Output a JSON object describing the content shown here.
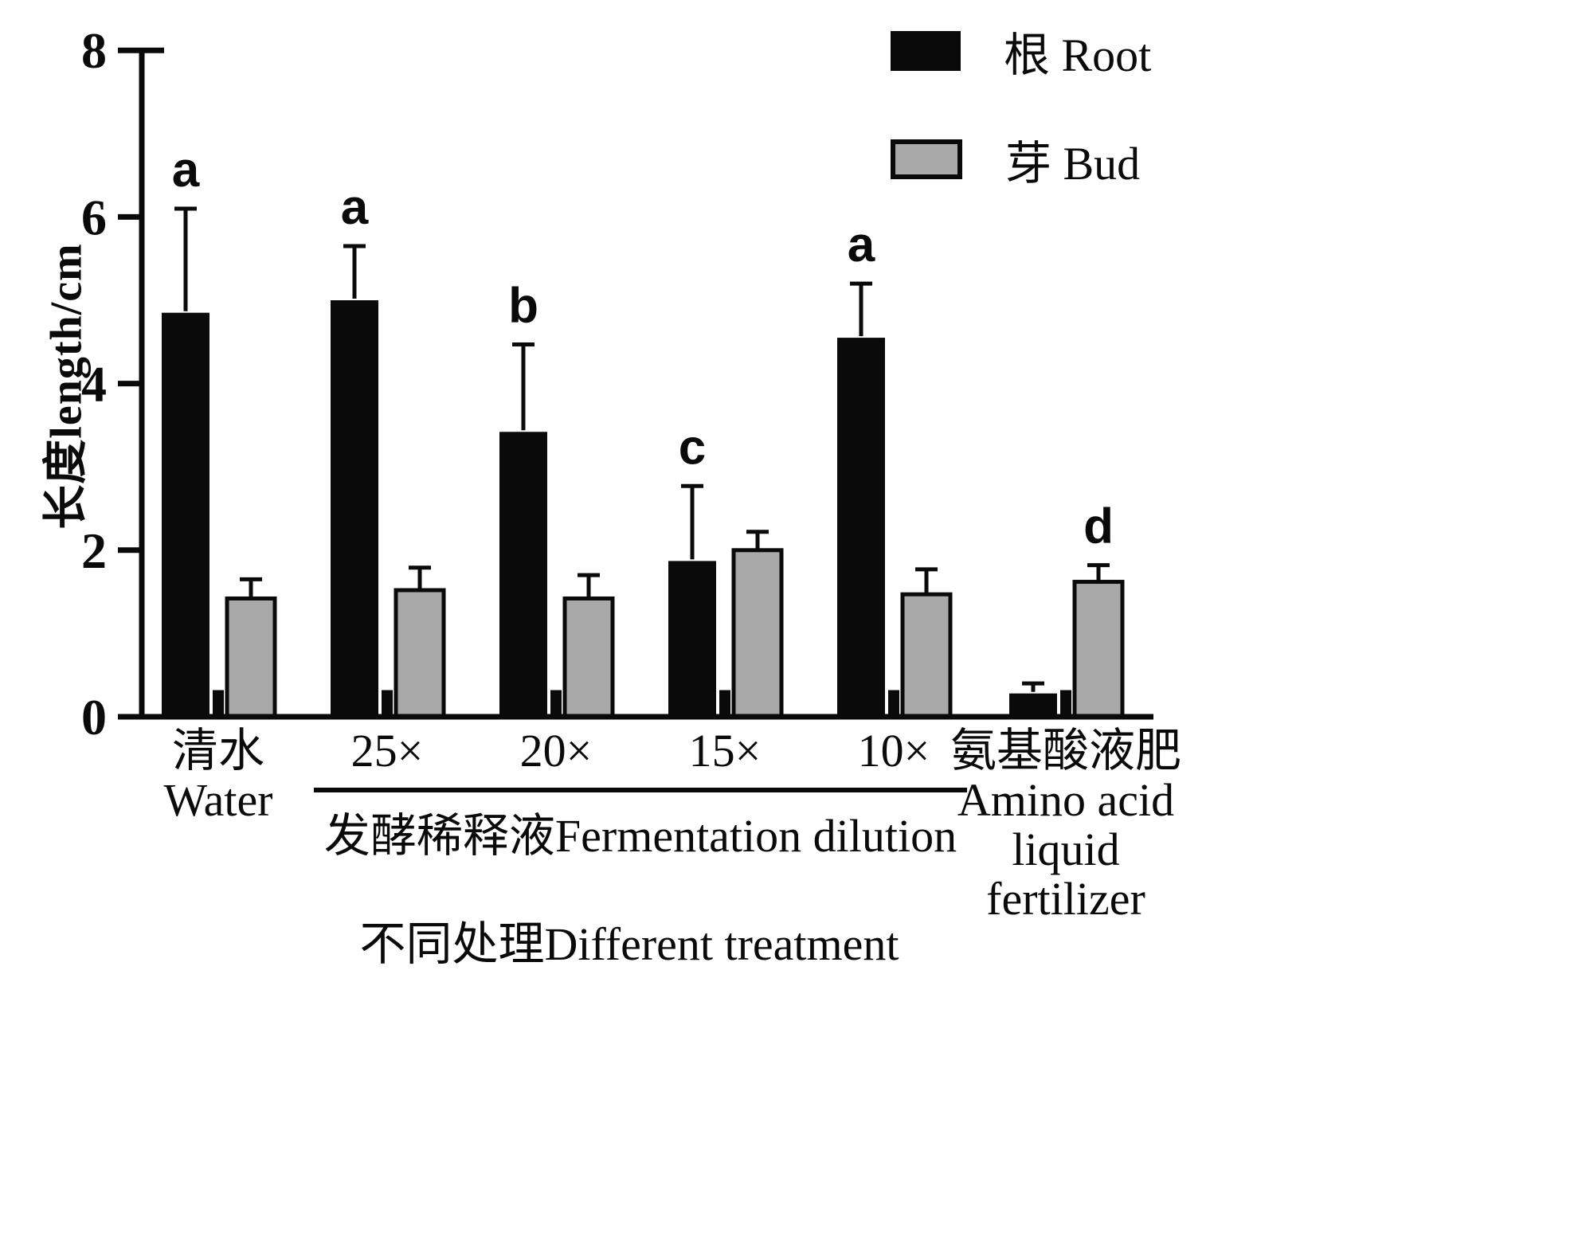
{
  "chart_data": {
    "type": "bar",
    "title": "",
    "ylabel": "长度length/cm",
    "xlabel": "不同处理Different treatment",
    "ylim": [
      0,
      8
    ],
    "yticks": [
      0,
      2,
      4,
      6,
      8
    ],
    "grid": false,
    "legend_position": "top-right",
    "legend": [
      {
        "name": "根  Root",
        "color": "#0a0a0a"
      },
      {
        "name": "芽  Bud",
        "color": "#a9a9a9"
      }
    ],
    "categories": [
      {
        "lines": [
          "清水",
          "Water"
        ]
      },
      {
        "lines": [
          "25×"
        ]
      },
      {
        "lines": [
          "20×"
        ]
      },
      {
        "lines": [
          "15×"
        ]
      },
      {
        "lines": [
          "10×"
        ]
      },
      {
        "lines": [
          "氨基酸液肥",
          "Amino acid",
          "liquid",
          "fertilizer"
        ]
      }
    ],
    "series": [
      {
        "name": "根 Root",
        "color": "#0a0a0a",
        "values": [
          4.85,
          5.0,
          3.42,
          1.87,
          4.55,
          0.28
        ],
        "errors": [
          1.25,
          0.65,
          1.05,
          0.9,
          0.65,
          0.12
        ],
        "letters": [
          "a",
          "a",
          "b",
          "c",
          "a",
          ""
        ]
      },
      {
        "name": "芽 Bud",
        "color": "#a9a9a9",
        "values": [
          1.42,
          1.52,
          1.42,
          2.0,
          1.47,
          1.62
        ],
        "errors": [
          0.23,
          0.27,
          0.28,
          0.22,
          0.3,
          0.2
        ],
        "letters": [
          "",
          "",
          "",
          "",
          "",
          "d"
        ]
      }
    ],
    "base_marks_between_pairs": {
      "present": true,
      "height": 0.32
    },
    "group_annotation": {
      "label": "发酵稀释液Fermentation dilution",
      "start_index": 1,
      "end_index": 4
    }
  }
}
